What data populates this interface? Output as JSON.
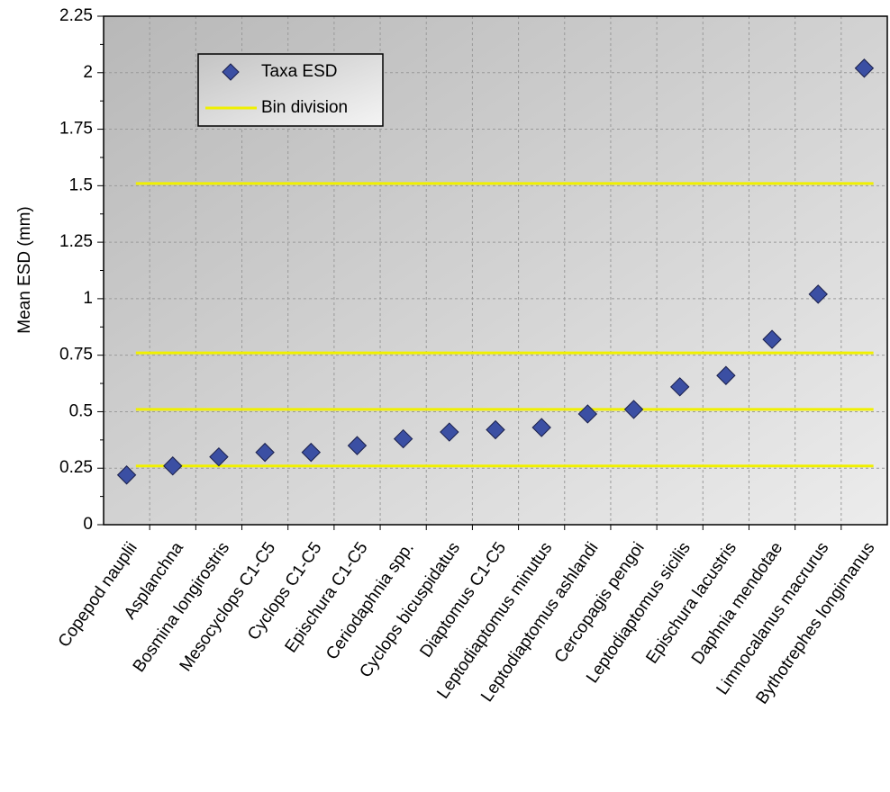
{
  "chart_data": {
    "type": "scatter",
    "y_label": "Mean ESD (mm)",
    "categories": [
      "Copepod nauplii",
      "Asplanchna",
      "Bosmina longirostris",
      "Mesocyclops C1-C5",
      "Cyclops C1-C5",
      "Epischura C1-C5",
      "Ceriodaphnia spp.",
      "Cyclops bicuspidatus",
      "Diaptomus C1-C5",
      "Leptodiaptomus minutus",
      "Leptodiaptomus ashlandi",
      "Cercopagis pengoi",
      "Leptodiaptomus sicilis",
      "Epischura lacustris",
      "Daphnia mendotae",
      "Limnocalanus macrurus",
      "Bythotrephes longimanus"
    ],
    "series": [
      {
        "name": "Taxa ESD",
        "color": "#3b4fa3",
        "values": [
          0.22,
          0.26,
          0.3,
          0.32,
          0.32,
          0.35,
          0.38,
          0.41,
          0.42,
          0.43,
          0.49,
          0.51,
          0.61,
          0.66,
          0.82,
          1.02,
          2.02
        ]
      }
    ],
    "bin_divisions": {
      "name": "Bin division",
      "color": "#f0f000",
      "values": [
        0.26,
        0.51,
        0.76,
        1.51
      ]
    },
    "ylim": [
      0,
      2.25
    ],
    "yticks": [
      0,
      0.25,
      0.5,
      0.75,
      1,
      1.25,
      1.5,
      1.75,
      2,
      2.25
    ],
    "grid": true
  }
}
